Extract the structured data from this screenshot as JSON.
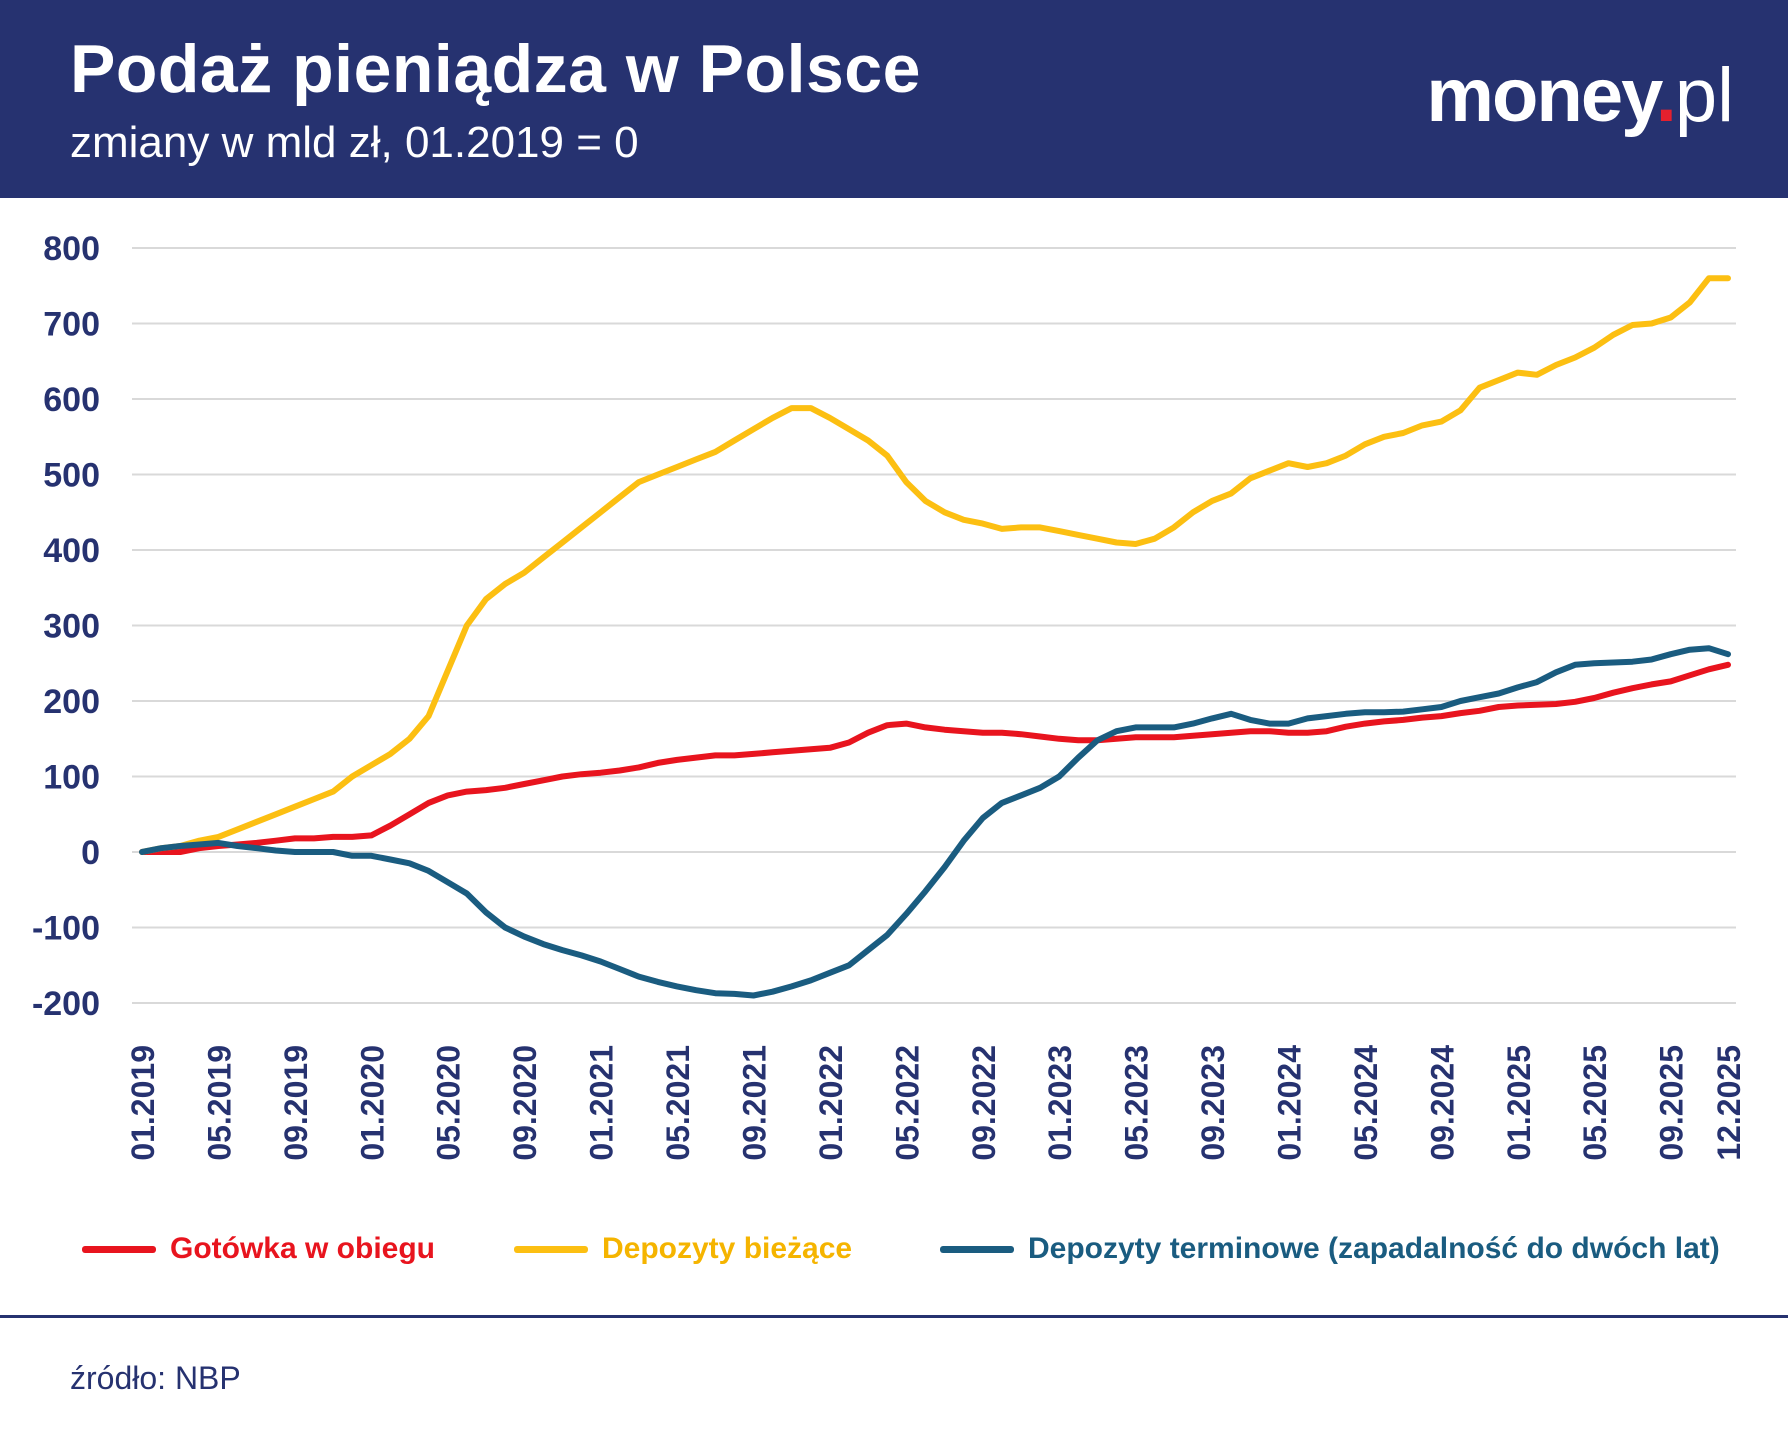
{
  "header": {
    "title": "Podaż pieniądza w Polsce",
    "subtitle": "zmiany w mld zł, 01.2019 = 0",
    "logo": {
      "name": "money",
      "dot": ".",
      "tld": "pl"
    }
  },
  "colors": {
    "header_bg": "#263270",
    "axis_text": "#263270",
    "grid": "#d9d9d9",
    "logo_dot": "#e5202e"
  },
  "chart_data": {
    "type": "line",
    "title": "Podaż pieniądza w Polsce",
    "subtitle": "zmiany w mld zł, 01.2019 = 0",
    "ylim": [
      -200,
      800
    ],
    "yticks": [
      800,
      700,
      600,
      500,
      400,
      300,
      200,
      100,
      0,
      -100,
      -200
    ],
    "xticks": [
      "01.2019",
      "05.2019",
      "09.2019",
      "01.2020",
      "05.2020",
      "09.2020",
      "01.2021",
      "05.2021",
      "09.2021",
      "01.2022",
      "05.2022",
      "09.2022",
      "01.2023",
      "05.2023",
      "09.2023",
      "01.2024",
      "05.2024",
      "09.2024",
      "01.2025",
      "05.2025",
      "09.2025",
      "12.2025"
    ],
    "grid": true,
    "legend_position": "bottom",
    "x": [
      "01.2019",
      "02.2019",
      "03.2019",
      "04.2019",
      "05.2019",
      "06.2019",
      "07.2019",
      "08.2019",
      "09.2019",
      "10.2019",
      "11.2019",
      "12.2019",
      "01.2020",
      "02.2020",
      "03.2020",
      "04.2020",
      "05.2020",
      "06.2020",
      "07.2020",
      "08.2020",
      "09.2020",
      "10.2020",
      "11.2020",
      "12.2020",
      "01.2021",
      "02.2021",
      "03.2021",
      "04.2021",
      "05.2021",
      "06.2021",
      "07.2021",
      "08.2021",
      "09.2021",
      "10.2021",
      "11.2021",
      "12.2021",
      "01.2022",
      "02.2022",
      "03.2022",
      "04.2022",
      "05.2022",
      "06.2022",
      "07.2022",
      "08.2022",
      "09.2022",
      "10.2022",
      "11.2022",
      "12.2022",
      "01.2023",
      "02.2023",
      "03.2023",
      "04.2023",
      "05.2023",
      "06.2023",
      "07.2023",
      "08.2023",
      "09.2023",
      "10.2023",
      "11.2023",
      "12.2023",
      "01.2024",
      "02.2024",
      "03.2024",
      "04.2024",
      "05.2024",
      "06.2024",
      "07.2024",
      "08.2024",
      "09.2024",
      "10.2024",
      "11.2024",
      "12.2024",
      "01.2025",
      "02.2025",
      "03.2025",
      "04.2025",
      "05.2025",
      "06.2025",
      "07.2025",
      "08.2025",
      "09.2025",
      "10.2025",
      "11.2025",
      "12.2025"
    ],
    "series": [
      {
        "name": "Gotówka w obiegu",
        "color": "#e8141e",
        "values": [
          0,
          0,
          0,
          5,
          8,
          10,
          12,
          15,
          18,
          18,
          20,
          20,
          22,
          35,
          50,
          65,
          75,
          80,
          82,
          85,
          90,
          95,
          100,
          103,
          105,
          108,
          112,
          118,
          122,
          125,
          128,
          128,
          130,
          132,
          134,
          136,
          138,
          145,
          158,
          168,
          170,
          165,
          162,
          160,
          158,
          158,
          156,
          153,
          150,
          148,
          148,
          150,
          152,
          152,
          152,
          154,
          156,
          158,
          160,
          160,
          158,
          158,
          160,
          166,
          170,
          173,
          175,
          178,
          180,
          184,
          187,
          192,
          194,
          195,
          196,
          199,
          204,
          211,
          217,
          222,
          226,
          234,
          242,
          248
        ]
      },
      {
        "name": "Depozyty bieżące",
        "color": "#fcbf12",
        "values": [
          0,
          5,
          8,
          15,
          20,
          30,
          40,
          50,
          60,
          70,
          80,
          100,
          115,
          130,
          150,
          180,
          240,
          300,
          335,
          355,
          370,
          390,
          410,
          430,
          450,
          470,
          490,
          500,
          510,
          520,
          530,
          545,
          560,
          575,
          588,
          588,
          575,
          560,
          545,
          525,
          490,
          465,
          450,
          440,
          435,
          428,
          430,
          430,
          425,
          420,
          415,
          410,
          408,
          415,
          430,
          450,
          465,
          475,
          495,
          505,
          515,
          510,
          515,
          525,
          540,
          550,
          555,
          565,
          570,
          585,
          615,
          625,
          635,
          632,
          645,
          655,
          668,
          685,
          698,
          700,
          708,
          728,
          760,
          760
        ]
      },
      {
        "name": "Depozyty terminowe (zapadalność do dwóch lat)",
        "color": "#1a5c80",
        "values": [
          0,
          5,
          8,
          10,
          12,
          8,
          5,
          2,
          0,
          0,
          0,
          -5,
          -5,
          -10,
          -15,
          -25,
          -40,
          -55,
          -80,
          -100,
          -112,
          -122,
          -130,
          -137,
          -145,
          -155,
          -165,
          -172,
          -178,
          -183,
          -187,
          -188,
          -190,
          -185,
          -178,
          -170,
          -160,
          -150,
          -130,
          -110,
          -82,
          -52,
          -20,
          15,
          45,
          65,
          75,
          85,
          100,
          125,
          148,
          160,
          165,
          165,
          165,
          170,
          177,
          183,
          175,
          170,
          170,
          177,
          180,
          183,
          185,
          185,
          186,
          189,
          192,
          200,
          205,
          210,
          218,
          225,
          238,
          248,
          250,
          251,
          252,
          255,
          262,
          268,
          270,
          262
        ]
      }
    ]
  },
  "legend": {
    "items": [
      {
        "label": "Gotówka w obiegu",
        "color": "#e8141e"
      },
      {
        "label": "Depozyty bieżące",
        "color": "#fcbf12"
      },
      {
        "label": "Depozyty terminowe (zapadalność do dwóch lat)",
        "color": "#1a5c80"
      }
    ]
  },
  "footer": {
    "source": "źródło: NBP"
  }
}
